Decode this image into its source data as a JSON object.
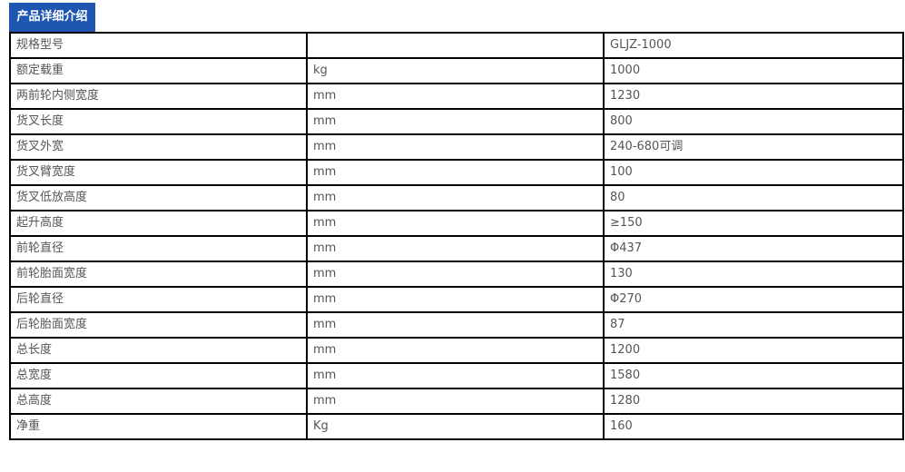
{
  "header": {
    "title": "产品详细介绍",
    "accent": "#1f56b0"
  },
  "specs": [
    {
      "name": "规格型号",
      "unit": "",
      "value": "GLJZ-1000"
    },
    {
      "name": "额定载重",
      "unit": "kg",
      "value": "1000"
    },
    {
      "name": "两前轮内侧宽度",
      "unit": "mm",
      "value": "1230"
    },
    {
      "name": "货叉长度",
      "unit": "mm",
      "value": "800"
    },
    {
      "name": "货叉外宽",
      "unit": "mm",
      "value": "240-680可调"
    },
    {
      "name": "货叉臂宽度",
      "unit": "mm",
      "value": "100"
    },
    {
      "name": "货叉低放高度",
      "unit": "mm",
      "value": "80"
    },
    {
      "name": "起升高度",
      "unit": "mm",
      "value": "≥150"
    },
    {
      "name": "前轮直径",
      "unit": "mm",
      "value": "Φ437"
    },
    {
      "name": "前轮胎面宽度",
      "unit": "mm",
      "value": "130"
    },
    {
      "name": "后轮直径",
      "unit": "mm",
      "value": "Φ270"
    },
    {
      "name": "后轮胎面宽度",
      "unit": "mm",
      "value": "87"
    },
    {
      "name": "总长度",
      "unit": "mm",
      "value": "1200"
    },
    {
      "name": "总宽度",
      "unit": "mm",
      "value": "1580"
    },
    {
      "name": "总高度",
      "unit": "mm",
      "value": "1280"
    },
    {
      "name": "净重",
      "unit": "Kg",
      "value": "160"
    }
  ]
}
